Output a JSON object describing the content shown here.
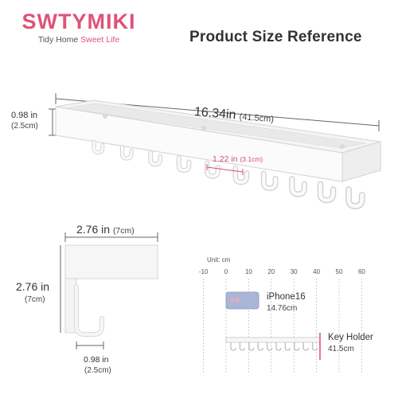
{
  "brand": {
    "name": "SWTYMIKI",
    "tagline_plain": "Tidy Home",
    "tagline_accent": "Sweet Life"
  },
  "title": "Product Size Reference",
  "main_view": {
    "length_in": "16.34in",
    "length_cm": "(41.5cm)",
    "height_in": "0.98 in",
    "height_cm": "(2.5cm)",
    "hook_gap_in": "1.22 in",
    "hook_gap_cm": "(3.1cm)",
    "hook_count": 10
  },
  "side_view": {
    "width_in": "2.76 in",
    "width_cm": "(7cm)",
    "height_in": "2.76 in",
    "height_cm": "(7cm)",
    "hook_in": "0.98 in",
    "hook_cm": "(2.5cm)"
  },
  "comparison": {
    "unit_label": "Unit: cm",
    "ticks": [
      "-10",
      "0",
      "10",
      "20",
      "30",
      "40",
      "50",
      "60"
    ],
    "phone_name": "iPhone16",
    "phone_length": "14.76cm",
    "holder_name": "Key Holder",
    "holder_length": "41.5cm"
  },
  "colors": {
    "brand": "#e0527a",
    "accent_red": "#d94d6b",
    "phone_body": "#a9b6d6"
  }
}
